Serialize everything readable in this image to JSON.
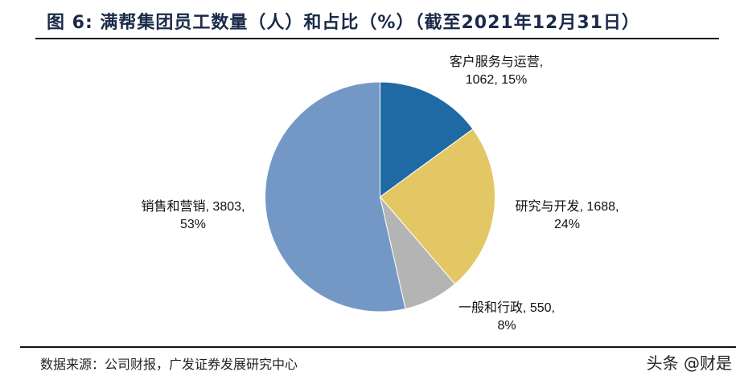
{
  "title": "图  6:  满帮集团员工数量（人）和占比（%）（截至2021年12月31日）",
  "source": "数据来源：公司财报，广发证券发展研究中心",
  "watermark": "头条 @财是",
  "chart_data": {
    "type": "pie",
    "title": "满帮集团员工数量（人）和占比（%）（截至2021年12月31日）",
    "start_angle_deg": 0,
    "direction": "clockwise",
    "slices": [
      {
        "label": "客户服务与运营",
        "value": 1062,
        "percent": "15%",
        "color": "#1f6aa5",
        "text_line1": "客户服务与运营,",
        "text_line2": "1062, 15%"
      },
      {
        "label": "研究与开发",
        "value": 1688,
        "percent": "24%",
        "color": "#e3c765",
        "text_line1": "研究与开发, 1688,",
        "text_line2": "24%"
      },
      {
        "label": "一般和行政",
        "value": 550,
        "percent": "8%",
        "color": "#b4b4b4",
        "text_line1": "一般和行政, 550,",
        "text_line2": "8%"
      },
      {
        "label": "销售和营销",
        "value": 3803,
        "percent": "53%",
        "color": "#7498c6",
        "text_line1": "销售和营销, 3803,",
        "text_line2": "53%"
      }
    ]
  }
}
